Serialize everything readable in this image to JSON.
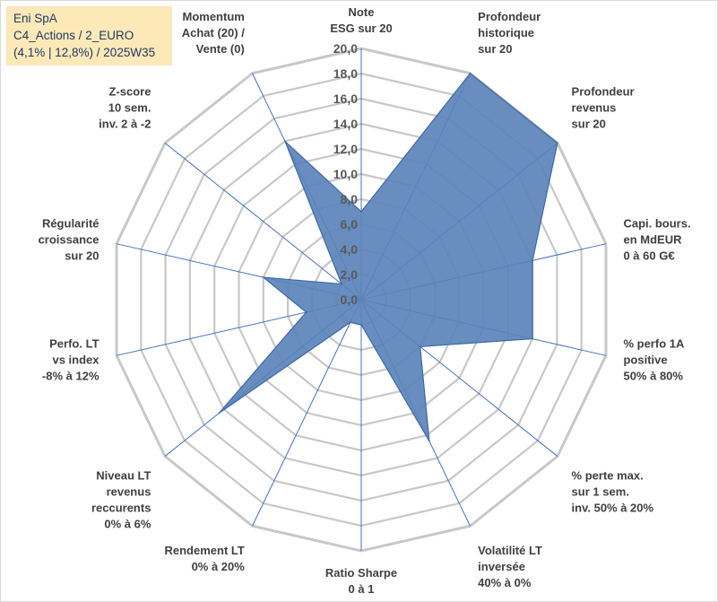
{
  "title_box": {
    "line1": "Eni SpA",
    "line2": "C4_Actions / 2_EURO",
    "line3": "(4,1% | 12,8%) / 2025W35"
  },
  "chart_data": {
    "type": "radar",
    "ylim": [
      0,
      20
    ],
    "tick_step": 2,
    "tick_labels": [
      "0,0",
      "2,0",
      "4,0",
      "6,0",
      "8,0",
      "10,0",
      "12,0",
      "14,0",
      "16,0",
      "18,0",
      "20,0"
    ],
    "grid": true,
    "colors": {
      "fill": "#5b83b9",
      "stroke": "#3f6aa6",
      "grid": "#c8c8c8",
      "spoke": "#4472c4"
    },
    "axes": [
      {
        "label": [
          "Note",
          "ESG sur 20"
        ],
        "value": 7.0
      },
      {
        "label": [
          "Profondeur",
          "historique",
          "sur 20"
        ],
        "value": 20.0
      },
      {
        "label": [
          "Profondeur",
          "revenus",
          "sur 20"
        ],
        "value": 20.0
      },
      {
        "label": [
          "Capi. bours.",
          "en MdEUR",
          "0 à 60 G€"
        ],
        "value": 14.0
      },
      {
        "label": [
          "% perfo 1A",
          "positive",
          "50% à 80%"
        ],
        "value": 14.0
      },
      {
        "label": [
          "% perte max.",
          "sur 1 sem.",
          "inv. 50% à 20%"
        ],
        "value": 6.0
      },
      {
        "label": [
          "Volatilité LT",
          "inversée",
          "40% à 0%"
        ],
        "value": 12.5
      },
      {
        "label": [
          "Ratio Sharpe",
          "0 à 1"
        ],
        "value": 2.0
      },
      {
        "label": [
          "Rendement LT",
          "0% à 20%"
        ],
        "value": 2.0
      },
      {
        "label": [
          "Niveau LT",
          "revenus",
          "reccurents",
          "0% à 6%"
        ],
        "value": 14.5
      },
      {
        "label": [
          "Perfo. LT",
          "vs index",
          "-8% à 12%"
        ],
        "value": 4.5
      },
      {
        "label": [
          "Régularité",
          "croissance",
          "sur 20"
        ],
        "value": 8.0
      },
      {
        "label": [
          "Z-score",
          "10 sem.",
          "inv. 2 à -2"
        ],
        "value": 2.0
      },
      {
        "label": [
          "Momentum",
          "Achat (20) /",
          "Vente (0)"
        ],
        "value": 14.0
      }
    ]
  }
}
